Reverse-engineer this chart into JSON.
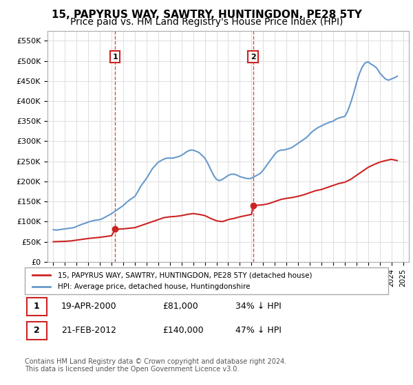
{
  "title": "15, PAPYRUS WAY, SAWTRY, HUNTINGDON, PE28 5TY",
  "subtitle": "Price paid vs. HM Land Registry's House Price Index (HPI)",
  "title_fontsize": 11,
  "subtitle_fontsize": 10,
  "legend_line1": "15, PAPYRUS WAY, SAWTRY, HUNTINGDON, PE28 5TY (detached house)",
  "legend_line2": "HPI: Average price, detached house, Huntingdonshire",
  "sale1_label": "1",
  "sale1_date": "19-APR-2000",
  "sale1_price": "£81,000",
  "sale1_hpi": "34% ↓ HPI",
  "sale1_year": 2000.3,
  "sale1_value": 81000,
  "sale2_label": "2",
  "sale2_date": "21-FEB-2012",
  "sale2_price": "£140,000",
  "sale2_hpi": "47% ↓ HPI",
  "sale2_year": 2012.13,
  "sale2_value": 140000,
  "footer": "Contains HM Land Registry data © Crown copyright and database right 2024.\nThis data is licensed under the Open Government Licence v3.0.",
  "hpi_color": "#6699cc",
  "property_color": "#cc2222",
  "marker_color": "#cc2222",
  "dashed_line_color": "#cc2222",
  "ylim": [
    0,
    575000
  ],
  "yticks": [
    0,
    50000,
    100000,
    150000,
    200000,
    250000,
    300000,
    350000,
    400000,
    450000,
    500000,
    550000
  ],
  "xlim_start": 1994.5,
  "xlim_end": 2025.5,
  "hpi_years": [
    1995,
    1995.25,
    1995.5,
    1995.75,
    1996,
    1996.25,
    1996.5,
    1996.75,
    1997,
    1997.25,
    1997.5,
    1997.75,
    1998,
    1998.25,
    1998.5,
    1998.75,
    1999,
    1999.25,
    1999.5,
    1999.75,
    2000,
    2000.25,
    2000.5,
    2000.75,
    2001,
    2001.25,
    2001.5,
    2001.75,
    2002,
    2002.25,
    2002.5,
    2002.75,
    2003,
    2003.25,
    2003.5,
    2003.75,
    2004,
    2004.25,
    2004.5,
    2004.75,
    2005,
    2005.25,
    2005.5,
    2005.75,
    2006,
    2006.25,
    2006.5,
    2006.75,
    2007,
    2007.25,
    2007.5,
    2007.75,
    2008,
    2008.25,
    2008.5,
    2008.75,
    2009,
    2009.25,
    2009.5,
    2009.75,
    2010,
    2010.25,
    2010.5,
    2010.75,
    2011,
    2011.25,
    2011.5,
    2011.75,
    2012,
    2012.25,
    2012.5,
    2012.75,
    2013,
    2013.25,
    2013.5,
    2013.75,
    2014,
    2014.25,
    2014.5,
    2014.75,
    2015,
    2015.25,
    2015.5,
    2015.75,
    2016,
    2016.25,
    2016.5,
    2016.75,
    2017,
    2017.25,
    2017.5,
    2017.75,
    2018,
    2018.25,
    2018.5,
    2018.75,
    2019,
    2019.25,
    2019.5,
    2019.75,
    2020,
    2020.25,
    2020.5,
    2020.75,
    2021,
    2021.25,
    2021.5,
    2021.75,
    2022,
    2022.25,
    2022.5,
    2022.75,
    2023,
    2023.25,
    2023.5,
    2023.75,
    2024,
    2024.25,
    2024.5
  ],
  "hpi_values": [
    80000,
    79000,
    80000,
    81000,
    82000,
    83000,
    84000,
    85000,
    88000,
    91000,
    94000,
    96000,
    99000,
    101000,
    103000,
    104000,
    105000,
    108000,
    112000,
    116000,
    120000,
    125000,
    130000,
    135000,
    140000,
    147000,
    153000,
    158000,
    163000,
    175000,
    188000,
    198000,
    208000,
    220000,
    232000,
    240000,
    248000,
    252000,
    256000,
    258000,
    258000,
    258000,
    260000,
    262000,
    265000,
    270000,
    275000,
    278000,
    278000,
    275000,
    272000,
    265000,
    258000,
    245000,
    230000,
    215000,
    205000,
    202000,
    205000,
    210000,
    215000,
    218000,
    218000,
    216000,
    212000,
    210000,
    208000,
    207000,
    208000,
    212000,
    216000,
    220000,
    228000,
    238000,
    248000,
    258000,
    268000,
    275000,
    278000,
    278000,
    280000,
    282000,
    285000,
    290000,
    295000,
    300000,
    305000,
    310000,
    318000,
    325000,
    330000,
    335000,
    338000,
    342000,
    345000,
    348000,
    350000,
    355000,
    358000,
    360000,
    362000,
    375000,
    395000,
    418000,
    445000,
    468000,
    485000,
    495000,
    498000,
    492000,
    488000,
    482000,
    470000,
    462000,
    455000,
    452000,
    455000,
    458000,
    462000
  ],
  "property_years": [
    1995,
    1995.5,
    1996,
    1996.5,
    1997,
    1997.5,
    1998,
    1998.5,
    1999,
    1999.5,
    2000,
    2000.3,
    2001,
    2001.5,
    2002,
    2002.5,
    2003,
    2003.5,
    2004,
    2004.5,
    2005,
    2005.5,
    2006,
    2006.5,
    2007,
    2007.5,
    2008,
    2008.5,
    2009,
    2009.5,
    2010,
    2010.5,
    2011,
    2011.5,
    2012,
    2012.13,
    2013,
    2013.5,
    2014,
    2014.5,
    2015,
    2015.5,
    2016,
    2016.5,
    2017,
    2017.5,
    2018,
    2018.5,
    2019,
    2019.5,
    2020,
    2020.5,
    2021,
    2021.5,
    2022,
    2022.5,
    2023,
    2023.5,
    2024,
    2024.5
  ],
  "property_values": [
    50000,
    50500,
    51000,
    52000,
    54000,
    56000,
    58000,
    59500,
    61000,
    63000,
    65000,
    81000,
    82000,
    83500,
    85000,
    90000,
    95000,
    100000,
    105000,
    110000,
    112000,
    113000,
    115000,
    118000,
    120000,
    118000,
    115000,
    108000,
    102000,
    100000,
    105000,
    108000,
    112000,
    115000,
    118000,
    140000,
    142000,
    145000,
    150000,
    155000,
    158000,
    160000,
    163000,
    167000,
    172000,
    177000,
    180000,
    185000,
    190000,
    195000,
    198000,
    205000,
    215000,
    225000,
    235000,
    242000,
    248000,
    252000,
    255000,
    252000
  ]
}
